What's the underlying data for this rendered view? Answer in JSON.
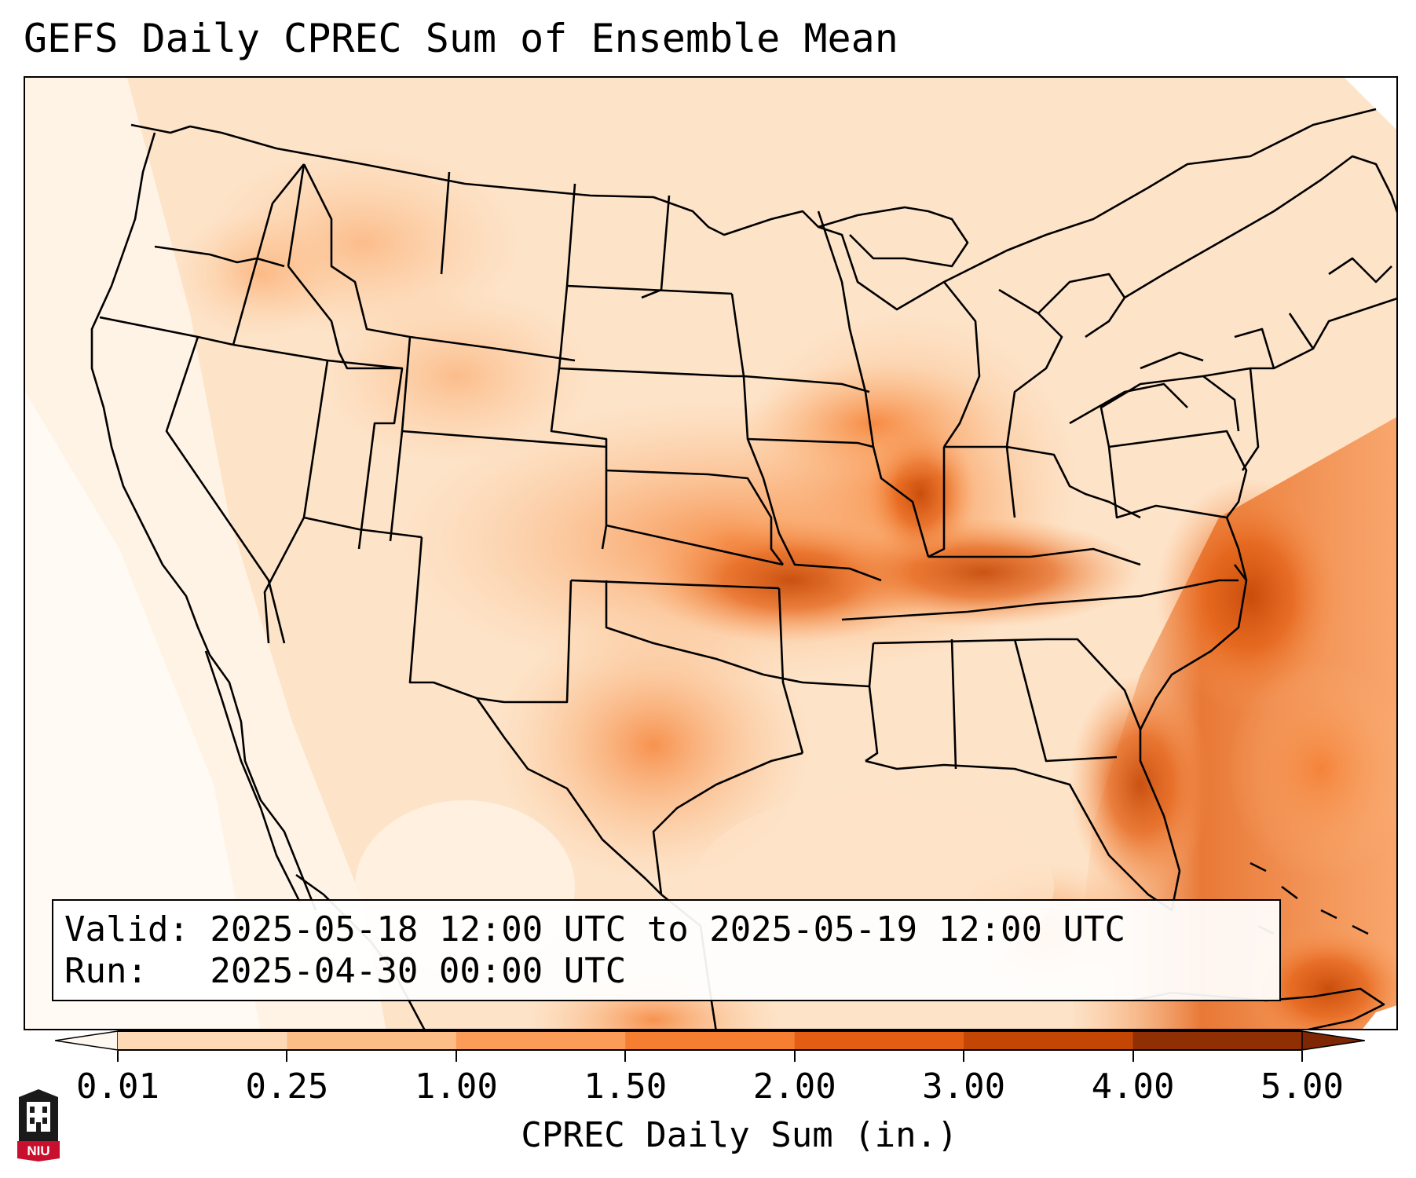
{
  "title": "GEFS Daily CPREC Sum of Ensemble Mean",
  "info": {
    "valid": "Valid: 2025-05-18 12:00 UTC to 2025-05-19 12:00 UTC",
    "run": "Run:   2025-04-30 00:00 UTC"
  },
  "colorbar": {
    "label": "CPREC Daily Sum (in.)",
    "ticks": [
      "0.01",
      "0.25",
      "1.00",
      "1.50",
      "2.00",
      "3.00",
      "4.00",
      "5.00"
    ],
    "colors": [
      "#fef0e1",
      "#fdd9b5",
      "#fdbd86",
      "#fb9d59",
      "#f57e31",
      "#e35e12",
      "#c44604",
      "#8f2f03"
    ],
    "under_color": "#fff8f0",
    "over_color": "#7f2704"
  },
  "logo": {
    "text": "NIU"
  }
}
